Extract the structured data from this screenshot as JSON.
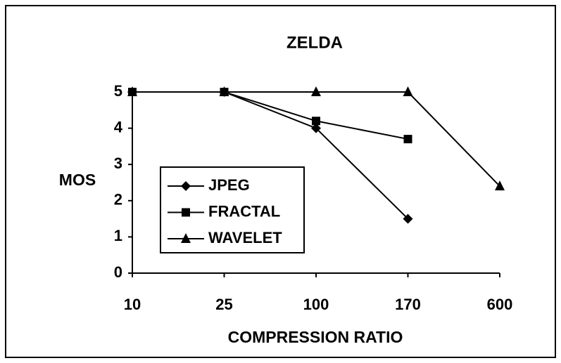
{
  "chart_data": {
    "type": "line",
    "title": "ZELDA",
    "x_label": "COMPRESSION RATIO",
    "y_label": "MOS",
    "categories": [
      "10",
      "25",
      "100",
      "170",
      "600"
    ],
    "series": [
      {
        "name": "JPEG",
        "color": "#000000",
        "marker": "diamond",
        "values": [
          5,
          5,
          4,
          1.5,
          null
        ]
      },
      {
        "name": "FRACTAL",
        "color": "#000000",
        "marker": "square",
        "values": [
          5,
          5,
          4.2,
          3.7,
          null
        ]
      },
      {
        "name": "WAVELET",
        "color": "#000000",
        "marker": "triangle",
        "values": [
          5,
          5,
          5,
          5,
          2.4
        ]
      }
    ],
    "ylim": [
      0,
      5
    ],
    "yticks": [
      0,
      1,
      2,
      3,
      4,
      5
    ],
    "grid": false,
    "legend": "center-left"
  }
}
